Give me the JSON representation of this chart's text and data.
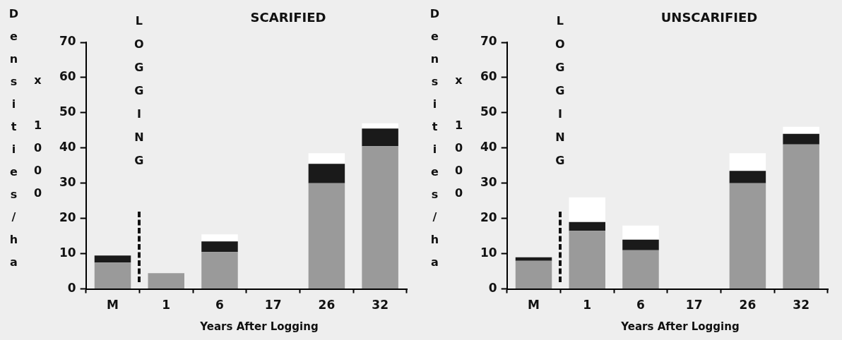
{
  "chart_data": [
    {
      "type": "bar",
      "title": "SCARIFIED",
      "xlabel": "Years After Logging",
      "ylabel": "Densities/ha x 1000",
      "categories": [
        "M",
        "1",
        "6",
        "17",
        "26",
        "32"
      ],
      "stacked": true,
      "ylim": [
        0,
        70
      ],
      "yticks": [
        0,
        10,
        20,
        30,
        40,
        50,
        60,
        70
      ],
      "annotations": [
        "LOGGING"
      ],
      "series": [
        {
          "color": "#9a9a9a",
          "values": [
            7.5,
            4.5,
            10.5,
            null,
            30,
            40.5
          ]
        },
        {
          "color": "#1a1a1a",
          "values": [
            2,
            null,
            3,
            null,
            5.5,
            5
          ]
        },
        {
          "color": "#ffffff",
          "values": [
            null,
            null,
            2,
            null,
            3,
            1.5
          ]
        }
      ]
    },
    {
      "type": "bar",
      "title": "UNSCARIFIED",
      "xlabel": "Years After Logging",
      "ylabel": "Densities/ha x 1000",
      "categories": [
        "M",
        "1",
        "6",
        "17",
        "26",
        "32"
      ],
      "stacked": true,
      "ylim": [
        0,
        70
      ],
      "yticks": [
        0,
        10,
        20,
        30,
        40,
        50,
        60,
        70
      ],
      "annotations": [
        "LOGGING"
      ],
      "series": [
        {
          "color": "#9a9a9a",
          "values": [
            8,
            16.5,
            11,
            null,
            30,
            41
          ]
        },
        {
          "color": "#1a1a1a",
          "values": [
            1,
            2.5,
            3,
            null,
            3.5,
            3
          ]
        },
        {
          "color": "#ffffff",
          "values": [
            null,
            7,
            4,
            null,
            5,
            2
          ]
        }
      ]
    }
  ]
}
